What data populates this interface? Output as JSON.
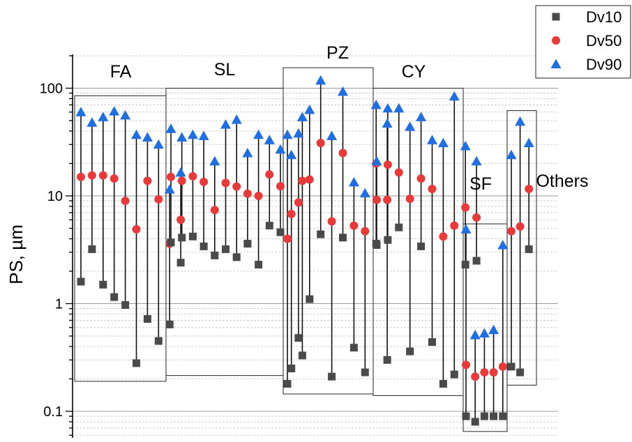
{
  "chart_data": {
    "type": "scatter",
    "ylabel": "PS, µm",
    "y_scale": "log",
    "ylim": [
      0.05,
      200
    ],
    "y_ticks": [
      {
        "value": 0.1,
        "label": "0.1"
      },
      {
        "value": 1,
        "label": "1"
      },
      {
        "value": 10,
        "label": "10"
      },
      {
        "value": 100,
        "label": "100"
      }
    ],
    "grid": true,
    "legend": "top-right",
    "series": [
      {
        "name": "Dv10",
        "color": "#4a4a4a",
        "marker": "square"
      },
      {
        "name": "Dv50",
        "color": "#e83a3a",
        "marker": "circle"
      },
      {
        "name": "Dv90",
        "color": "#1f6fe0",
        "marker": "triangle"
      }
    ],
    "groups": [
      {
        "label": "FA",
        "samples": [
          {
            "dv10": 1.6,
            "dv50": 15.0,
            "dv90": 60
          },
          {
            "dv10": 3.2,
            "dv50": 15.5,
            "dv90": 48
          },
          {
            "dv10": 1.5,
            "dv50": 15.5,
            "dv90": 54
          },
          {
            "dv10": 1.15,
            "dv50": 14.5,
            "dv90": 61
          },
          {
            "dv10": 0.97,
            "dv50": 9.0,
            "dv90": 56
          },
          {
            "dv10": 0.28,
            "dv50": 4.9,
            "dv90": 37
          },
          {
            "dv10": 0.72,
            "dv50": 13.8,
            "dv90": 35
          },
          {
            "dv10": 0.45,
            "dv50": 9.3,
            "dv90": 30
          },
          {
            "dv10": 0.64,
            "dv50": 3.6,
            "dv90": 11.5
          },
          {
            "dv10": 2.4,
            "dv50": 6.0,
            "dv90": 16.5
          }
        ]
      },
      {
        "label": "SL",
        "samples": [
          {
            "dv10": 3.7,
            "dv50": 15.0,
            "dv90": 42
          },
          {
            "dv10": 4.1,
            "dv50": 13.8,
            "dv90": 35
          },
          {
            "dv10": 4.2,
            "dv50": 15.2,
            "dv90": 37
          },
          {
            "dv10": 3.4,
            "dv50": 13.5,
            "dv90": 36
          },
          {
            "dv10": 2.8,
            "dv50": 7.4,
            "dv90": 21
          },
          {
            "dv10": 3.2,
            "dv50": 13.2,
            "dv90": 46
          },
          {
            "dv10": 2.7,
            "dv50": 12.2,
            "dv90": 51
          },
          {
            "dv10": 3.6,
            "dv50": 10.5,
            "dv90": 25
          },
          {
            "dv10": 2.3,
            "dv50": 10.0,
            "dv90": 37
          },
          {
            "dv10": 5.3,
            "dv50": 15.8,
            "dv90": 33
          },
          {
            "dv10": 4.6,
            "dv50": 12.3,
            "dv90": 27
          },
          {
            "dv10": 0.25,
            "dv50": 6.8,
            "dv90": 24
          },
          {
            "dv10": 0.33,
            "dv50": 13.8,
            "dv90": 54
          }
        ]
      },
      {
        "label": "PZ",
        "samples": [
          {
            "dv10": 0.18,
            "dv50": 4.0,
            "dv90": 37
          },
          {
            "dv10": 0.48,
            "dv50": 8.7,
            "dv90": 38
          },
          {
            "dv10": 1.1,
            "dv50": 14.2,
            "dv90": 63
          },
          {
            "dv10": 4.4,
            "dv50": 31,
            "dv90": 118
          },
          {
            "dv10": 0.21,
            "dv50": 5.8,
            "dv90": 36
          },
          {
            "dv10": 4.1,
            "dv50": 25,
            "dv90": 93
          },
          {
            "dv10": 0.39,
            "dv50": 5.3,
            "dv90": 13.4
          },
          {
            "dv10": 0.23,
            "dv50": 4.7,
            "dv90": 10.6
          },
          {
            "dv10": 3.6,
            "dv50": 20,
            "dv90": 70
          },
          {
            "dv10": 0.3,
            "dv50": 9.2,
            "dv90": 47
          }
        ]
      },
      {
        "label": "CY",
        "samples": [
          {
            "dv10": 3.5,
            "dv50": 9.2,
            "dv90": 21
          },
          {
            "dv10": 3.9,
            "dv50": 19.5,
            "dv90": 65
          },
          {
            "dv10": 5.1,
            "dv50": 16.5,
            "dv90": 65
          },
          {
            "dv10": 0.36,
            "dv50": 9.4,
            "dv90": 44
          },
          {
            "dv10": 3.4,
            "dv50": 14.5,
            "dv90": 54
          },
          {
            "dv10": 0.44,
            "dv50": 11.6,
            "dv90": 33
          },
          {
            "dv10": 0.18,
            "dv50": 4.2,
            "dv90": 31
          },
          {
            "dv10": 0.22,
            "dv50": 5.3,
            "dv90": 84
          },
          {
            "dv10": 2.3,
            "dv50": 7.8,
            "dv90": 29
          },
          {
            "dv10": 2.5,
            "dv50": 6.3,
            "dv90": 21
          }
        ]
      },
      {
        "label": "SF",
        "samples": [
          {
            "dv10": 0.09,
            "dv50": 0.27,
            "dv90": 4.9
          },
          {
            "dv10": 0.08,
            "dv50": 0.21,
            "dv90": 0.51
          },
          {
            "dv10": 0.09,
            "dv50": 0.23,
            "dv90": 0.53
          },
          {
            "dv10": 0.09,
            "dv50": 0.23,
            "dv90": 0.57
          },
          {
            "dv10": 0.09,
            "dv50": 0.26,
            "dv90": 3.5
          }
        ]
      },
      {
        "label": "Others",
        "samples": [
          {
            "dv10": 0.26,
            "dv50": 4.7,
            "dv90": 24
          },
          {
            "dv10": 0.23,
            "dv50": 5.2,
            "dv90": 49
          },
          {
            "dv10": 3.2,
            "dv50": 11.6,
            "dv90": 31
          }
        ]
      }
    ]
  }
}
